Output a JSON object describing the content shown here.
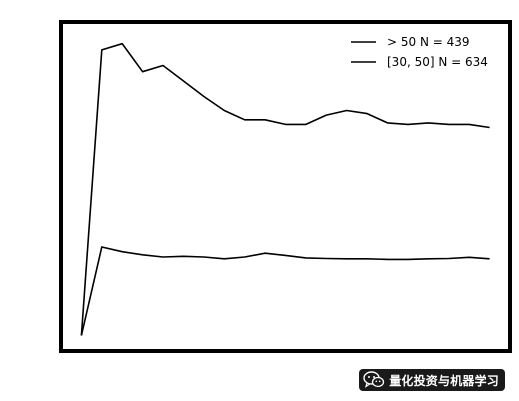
{
  "chart_data": {
    "type": "line",
    "title": "",
    "xlabel": "",
    "ylabel": "",
    "grid": false,
    "legend": "top-right",
    "x": [
      0,
      1,
      2,
      3,
      4,
      5,
      6,
      7,
      8,
      9,
      10,
      11,
      12,
      13,
      14,
      15,
      16,
      17,
      18,
      19,
      20
    ],
    "xlim": [
      -1,
      21
    ],
    "ylim": [
      0,
      1.06
    ],
    "series": [
      {
        "name": "> 50 N = 439",
        "color": "#000000",
        "values": [
          0.05,
          0.97,
          0.99,
          0.9,
          0.92,
          0.87,
          0.82,
          0.775,
          0.745,
          0.745,
          0.73,
          0.73,
          0.76,
          0.775,
          0.765,
          0.735,
          0.73,
          0.735,
          0.73,
          0.73,
          0.72
        ]
      },
      {
        "name": "[30, 50] N = 634",
        "color": "#000000",
        "values": [
          0.05,
          0.335,
          0.32,
          0.31,
          0.303,
          0.305,
          0.303,
          0.297,
          0.303,
          0.315,
          0.308,
          0.3,
          0.298,
          0.297,
          0.297,
          0.295,
          0.295,
          0.297,
          0.298,
          0.302,
          0.297
        ]
      }
    ]
  },
  "watermark": {
    "text": "量化投资与机器学习",
    "icon": "wechat-icon"
  }
}
